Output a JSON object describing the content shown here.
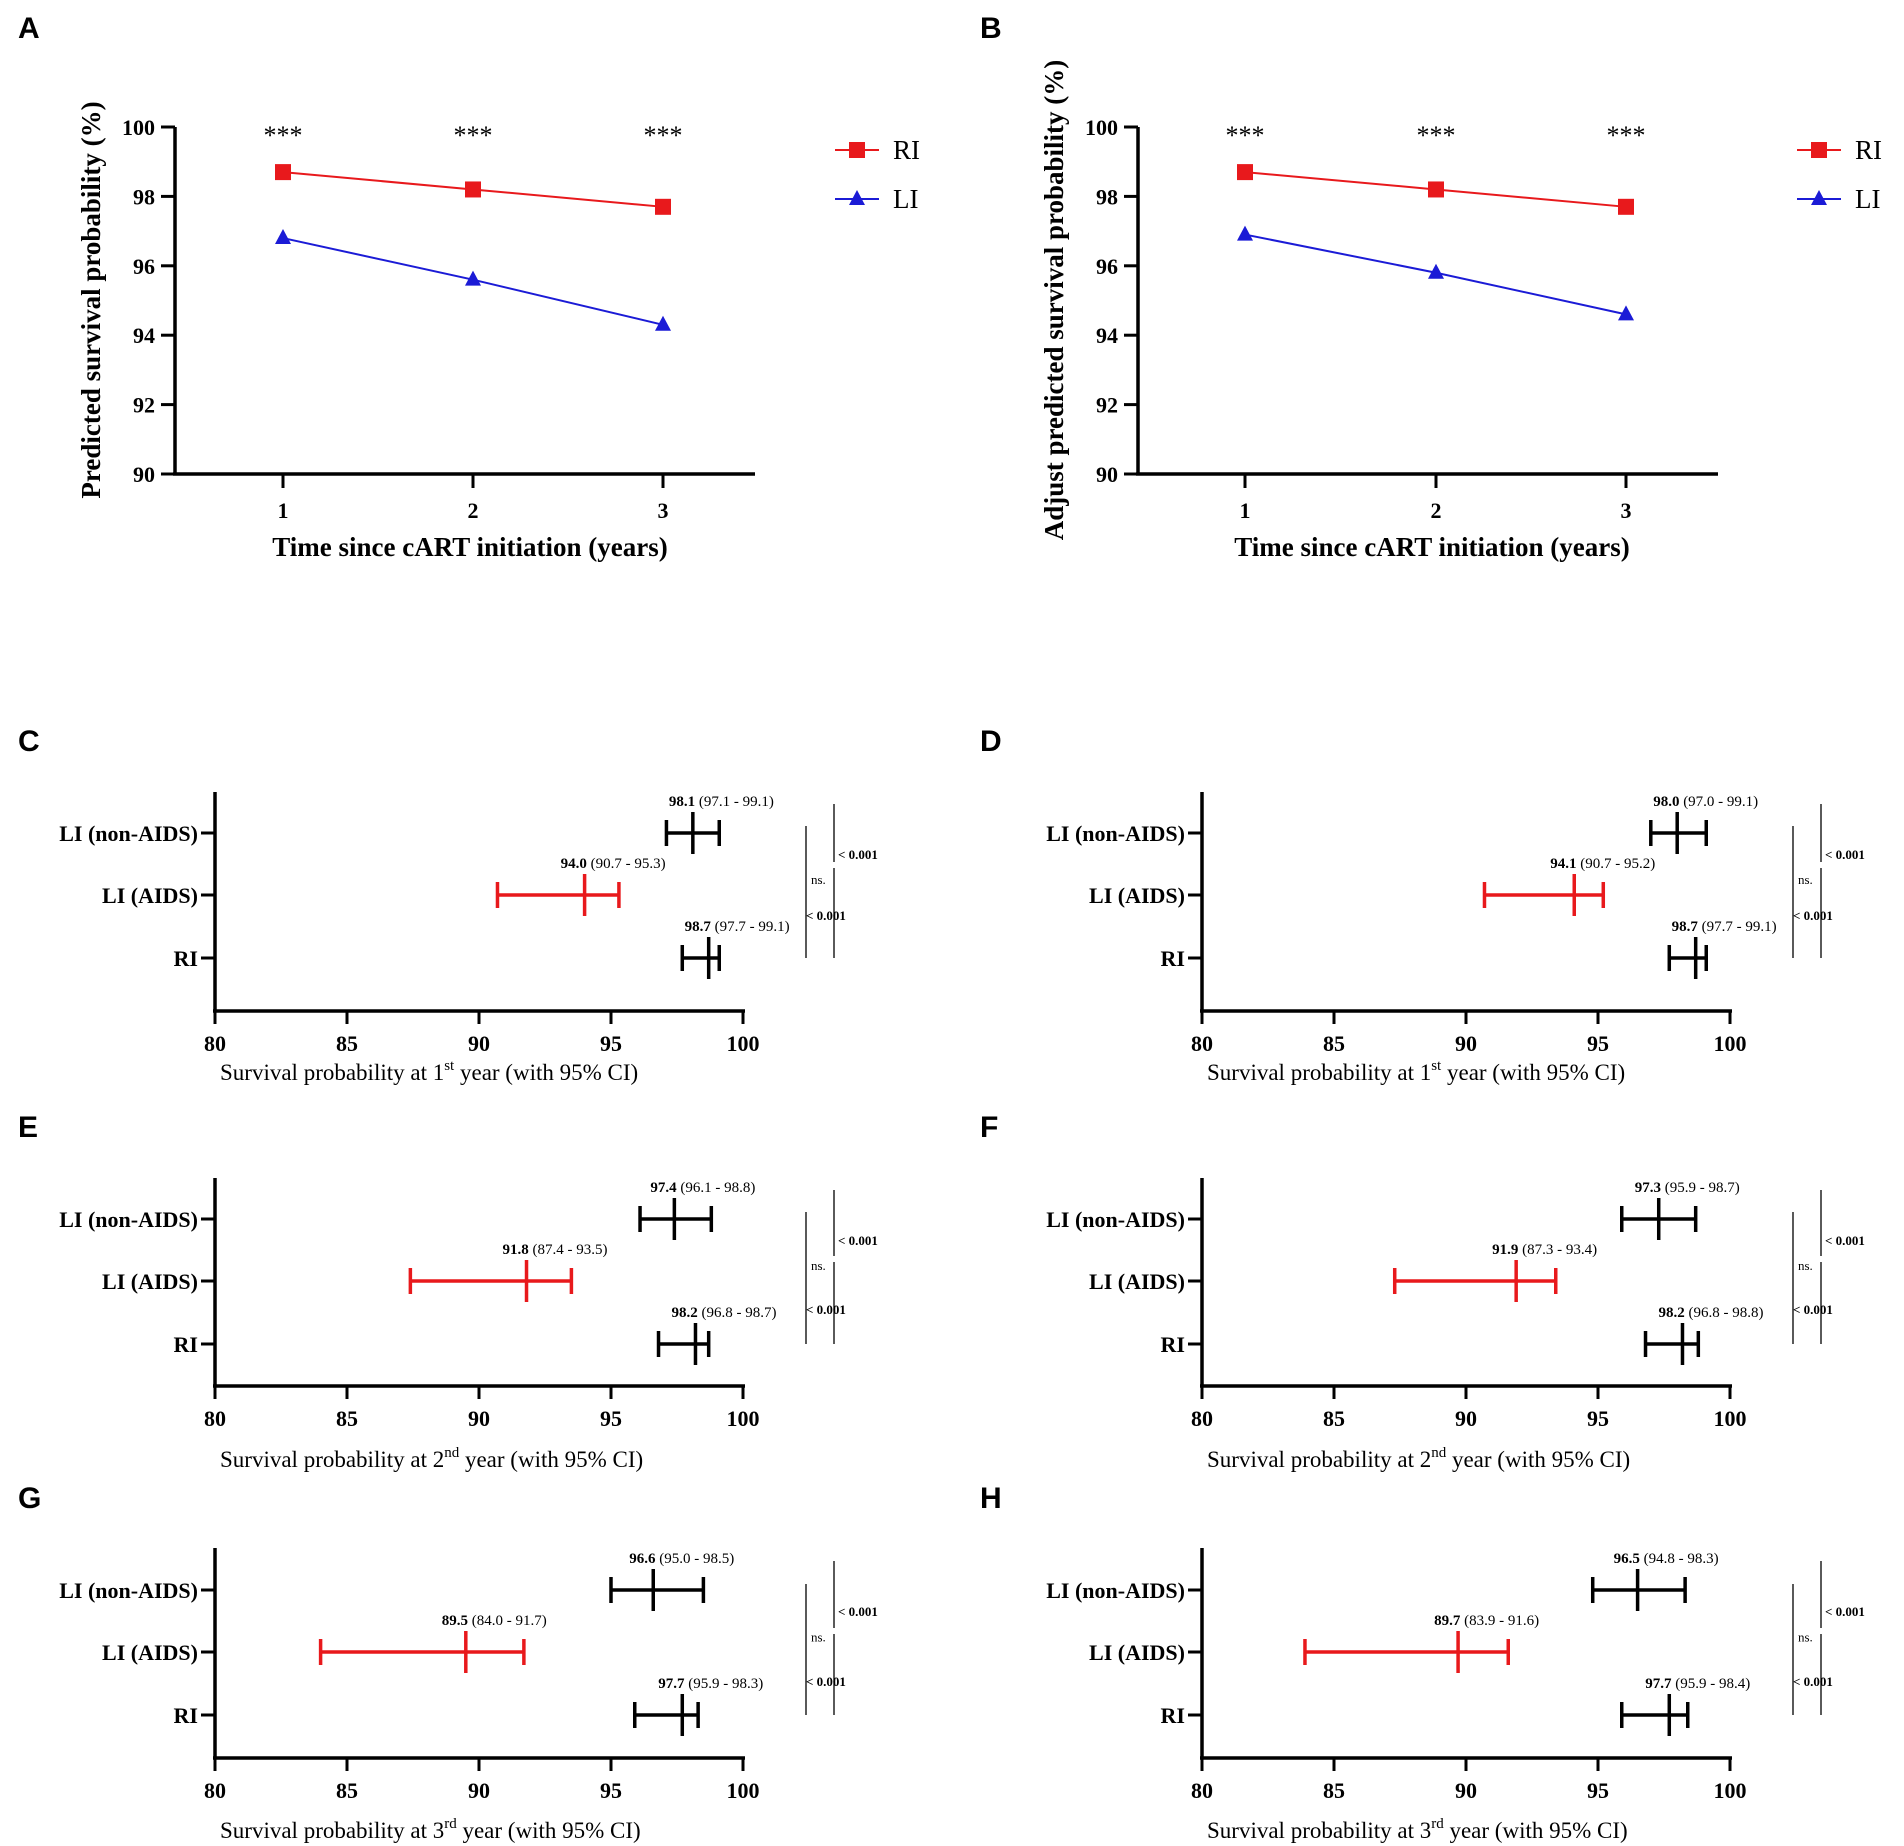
{
  "chart_data": [
    {
      "id": "A",
      "type": "line",
      "panel_label": "A",
      "xlabel": "Time since cART initiation (years)",
      "ylabel": "Predicted survival probability (%)",
      "x": [
        1,
        2,
        3
      ],
      "x_ticks": [
        "1",
        "2",
        "3"
      ],
      "ylim": [
        90,
        100
      ],
      "y_ticks": [
        90,
        92,
        94,
        96,
        98,
        100
      ],
      "annotations": [
        "***",
        "***",
        "***"
      ],
      "legend_position": "top-right",
      "series": [
        {
          "name": "RI",
          "color": "#e8191c",
          "marker": "square",
          "values": [
            98.7,
            98.2,
            97.7
          ]
        },
        {
          "name": "LI",
          "color": "#1b1bd6",
          "marker": "triangle",
          "values": [
            96.8,
            95.6,
            94.3
          ]
        }
      ]
    },
    {
      "id": "B",
      "type": "line",
      "panel_label": "B",
      "xlabel": "Time since cART initiation (years)",
      "ylabel": "Adjust predicted survival probability (%)",
      "x": [
        1,
        2,
        3
      ],
      "x_ticks": [
        "1",
        "2",
        "3"
      ],
      "ylim": [
        90,
        100
      ],
      "y_ticks": [
        90,
        92,
        94,
        96,
        98,
        100
      ],
      "annotations": [
        "***",
        "***",
        "***"
      ],
      "legend_position": "top-right",
      "series": [
        {
          "name": "RI",
          "color": "#e8191c",
          "marker": "square",
          "values": [
            98.7,
            98.2,
            97.7
          ]
        },
        {
          "name": "LI",
          "color": "#1b1bd6",
          "marker": "triangle",
          "values": [
            96.9,
            95.8,
            94.6
          ]
        }
      ]
    },
    {
      "id": "C",
      "type": "forest",
      "panel_label": "C",
      "xlabel_pre": "Survival probability at 1",
      "xlabel_sup": "st",
      "xlabel_post": " year (with 95% CI)",
      "xlim": [
        80,
        100
      ],
      "x_ticks": [
        80,
        85,
        90,
        95,
        100
      ],
      "rows": [
        {
          "label": "LI (non-AIDS)",
          "estimate": 98.1,
          "lower": 97.1,
          "upper": 99.1,
          "estimate_text": "98.1",
          "ci_text": " (97.1 - 99.1)",
          "color": "#000000"
        },
        {
          "label": "LI (AIDS)",
          "estimate": 94.0,
          "lower": 90.7,
          "upper": 95.3,
          "estimate_text": "94.0",
          "ci_text": " (90.7 - 95.3)",
          "color": "#e8191c"
        },
        {
          "label": "RI",
          "estimate": 98.7,
          "lower": 97.7,
          "upper": 99.1,
          "estimate_text": "98.7",
          "ci_text": " (97.7 - 99.1)",
          "color": "#000000"
        }
      ],
      "comparisons": {
        "nonaids_vs_aids": "< 0.001",
        "aids_vs_ri": "< 0.001",
        "nonaids_vs_ri": "ns."
      }
    },
    {
      "id": "D",
      "type": "forest",
      "panel_label": "D",
      "xlabel_pre": "Survival probability at 1",
      "xlabel_sup": "st",
      "xlabel_post": " year (with 95% CI)",
      "xlim": [
        80,
        100
      ],
      "x_ticks": [
        80,
        85,
        90,
        95,
        100
      ],
      "rows": [
        {
          "label": "LI (non-AIDS)",
          "estimate": 98.0,
          "lower": 97.0,
          "upper": 99.1,
          "estimate_text": "98.0",
          "ci_text": " (97.0 - 99.1)",
          "color": "#000000"
        },
        {
          "label": "LI (AIDS)",
          "estimate": 94.1,
          "lower": 90.7,
          "upper": 95.2,
          "estimate_text": "94.1",
          "ci_text": " (90.7 - 95.2)",
          "color": "#e8191c"
        },
        {
          "label": "RI",
          "estimate": 98.7,
          "lower": 97.7,
          "upper": 99.1,
          "estimate_text": "98.7",
          "ci_text": " (97.7 - 99.1)",
          "color": "#000000"
        }
      ],
      "comparisons": {
        "nonaids_vs_aids": "< 0.001",
        "aids_vs_ri": "< 0.001",
        "nonaids_vs_ri": "ns."
      }
    },
    {
      "id": "E",
      "type": "forest",
      "panel_label": "E",
      "xlabel_pre": "Survival probability at 2",
      "xlabel_sup": "nd",
      "xlabel_post": " year (with 95% CI)",
      "xlim": [
        80,
        100
      ],
      "x_ticks": [
        80,
        85,
        90,
        95,
        100
      ],
      "rows": [
        {
          "label": "LI (non-AIDS)",
          "estimate": 97.4,
          "lower": 96.1,
          "upper": 98.8,
          "estimate_text": "97.4",
          "ci_text": " (96.1 - 98.8)",
          "color": "#000000"
        },
        {
          "label": "LI (AIDS)",
          "estimate": 91.8,
          "lower": 87.4,
          "upper": 93.5,
          "estimate_text": "91.8",
          "ci_text": " (87.4 - 93.5)",
          "color": "#e8191c"
        },
        {
          "label": "RI",
          "estimate": 98.2,
          "lower": 96.8,
          "upper": 98.7,
          "estimate_text": "98.2",
          "ci_text": " (96.8 - 98.7)",
          "color": "#000000"
        }
      ],
      "comparisons": {
        "nonaids_vs_aids": "< 0.001",
        "aids_vs_ri": "< 0.001",
        "nonaids_vs_ri": "ns."
      }
    },
    {
      "id": "F",
      "type": "forest",
      "panel_label": "F",
      "xlabel_pre": "Survival probability at 2",
      "xlabel_sup": "nd",
      "xlabel_post": " year (with 95% CI)",
      "xlim": [
        80,
        100
      ],
      "x_ticks": [
        80,
        85,
        90,
        95,
        100
      ],
      "rows": [
        {
          "label": "LI (non-AIDS)",
          "estimate": 97.3,
          "lower": 95.9,
          "upper": 98.7,
          "estimate_text": "97.3",
          "ci_text": " (95.9 - 98.7)",
          "color": "#000000"
        },
        {
          "label": "LI (AIDS)",
          "estimate": 91.9,
          "lower": 87.3,
          "upper": 93.4,
          "estimate_text": "91.9",
          "ci_text": " (87.3 - 93.4)",
          "color": "#e8191c"
        },
        {
          "label": "RI",
          "estimate": 98.2,
          "lower": 96.8,
          "upper": 98.8,
          "estimate_text": "98.2",
          "ci_text": " (96.8 - 98.8)",
          "color": "#000000"
        }
      ],
      "comparisons": {
        "nonaids_vs_aids": "< 0.001",
        "aids_vs_ri": "< 0.001",
        "nonaids_vs_ri": "ns."
      }
    },
    {
      "id": "G",
      "type": "forest",
      "panel_label": "G",
      "xlabel_pre": "Survival probability at 3",
      "xlabel_sup": "rd",
      "xlabel_post": " year (with 95% CI)",
      "xlim": [
        80,
        100
      ],
      "x_ticks": [
        80,
        85,
        90,
        95,
        100
      ],
      "rows": [
        {
          "label": "LI (non-AIDS)",
          "estimate": 96.6,
          "lower": 95.0,
          "upper": 98.5,
          "estimate_text": "96.6",
          "ci_text": " (95.0 - 98.5)",
          "color": "#000000"
        },
        {
          "label": "LI (AIDS)",
          "estimate": 89.5,
          "lower": 84.0,
          "upper": 91.7,
          "estimate_text": "89.5",
          "ci_text": " (84.0 - 91.7)",
          "color": "#e8191c"
        },
        {
          "label": "RI",
          "estimate": 97.7,
          "lower": 95.9,
          "upper": 98.3,
          "estimate_text": "97.7",
          "ci_text": " (95.9 - 98.3)",
          "color": "#000000"
        }
      ],
      "comparisons": {
        "nonaids_vs_aids": "< 0.001",
        "aids_vs_ri": "< 0.001",
        "nonaids_vs_ri": "ns."
      }
    },
    {
      "id": "H",
      "type": "forest",
      "panel_label": "H",
      "xlabel_pre": "Survival probability at 3",
      "xlabel_sup": "rd",
      "xlabel_post": " year (with 95% CI)",
      "xlim": [
        80,
        100
      ],
      "x_ticks": [
        80,
        85,
        90,
        95,
        100
      ],
      "rows": [
        {
          "label": "LI (non-AIDS)",
          "estimate": 96.5,
          "lower": 94.8,
          "upper": 98.3,
          "estimate_text": "96.5",
          "ci_text": " (94.8 - 98.3)",
          "color": "#000000"
        },
        {
          "label": "LI (AIDS)",
          "estimate": 89.7,
          "lower": 83.9,
          "upper": 91.6,
          "estimate_text": "89.7",
          "ci_text": " (83.9 - 91.6)",
          "color": "#e8191c"
        },
        {
          "label": "RI",
          "estimate": 97.7,
          "lower": 95.9,
          "upper": 98.4,
          "estimate_text": "97.7",
          "ci_text": " (95.9 - 98.4)",
          "color": "#000000"
        }
      ],
      "comparisons": {
        "nonaids_vs_aids": "< 0.001",
        "aids_vs_ri": "< 0.001",
        "nonaids_vs_ri": "ns."
      }
    }
  ]
}
